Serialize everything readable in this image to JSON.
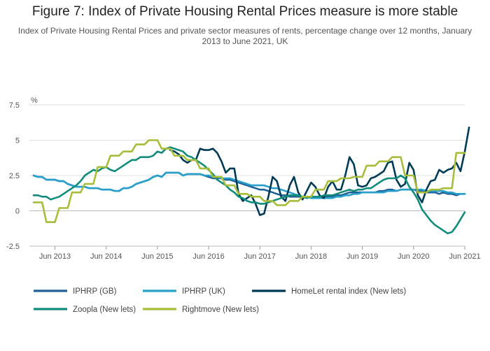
{
  "title": "Figure 7: Index of Private Housing Rental Prices measure is more stable",
  "subtitle": "Index of Private Housing Rental Prices and private sector measures of rents, percentage change over 12 months, January 2013 to June 2021, UK",
  "chart_data": {
    "type": "line",
    "ylabel": "%",
    "ylim": [
      -2.5,
      7.5
    ],
    "yticks": [
      "-2.5",
      "0",
      "2.5",
      "5",
      "7.5"
    ],
    "xticks": [
      "Jun 2013",
      "Jun 2014",
      "Jun 2015",
      "Jun 2016",
      "Jun 2017",
      "Jun 2018",
      "Jun 2019",
      "Jun 2020",
      "Jun 2021"
    ],
    "x_start": "Jan 2013",
    "x_end": "Jun 2021",
    "grid": true,
    "legend_position": "bottom",
    "series": [
      {
        "name": "IPHRP (GB)",
        "color": "#206095",
        "values": [
          2.5,
          2.4,
          2.4,
          2.2,
          2.2,
          2.2,
          2.1,
          2.1,
          1.9,
          1.8,
          1.7,
          1.7,
          1.7,
          1.6,
          1.6,
          1.6,
          1.5,
          1.5,
          1.5,
          1.4,
          1.4,
          1.6,
          1.6,
          1.7,
          1.9,
          2.0,
          2.1,
          2.2,
          2.4,
          2.5,
          2.4,
          2.7,
          2.7,
          2.7,
          2.7,
          2.5,
          2.6,
          2.6,
          2.6,
          2.6,
          2.5,
          2.4,
          2.3,
          2.3,
          2.3,
          2.2,
          2.2,
          2.1,
          2.0,
          1.9,
          1.8,
          1.7,
          1.6,
          1.5,
          1.5,
          1.4,
          1.3,
          1.2,
          1.1,
          1.1,
          1.0,
          1.0,
          1.0,
          1.0,
          1.0,
          1.0,
          1.0,
          1.0,
          1.0,
          1.0,
          1.0,
          1.1,
          1.1,
          1.2,
          1.3,
          1.3,
          1.3,
          1.3,
          1.3,
          1.3,
          1.3,
          1.4,
          1.4,
          1.5,
          1.5,
          1.4,
          1.5,
          1.5,
          1.5,
          1.5,
          1.4,
          1.4,
          1.3,
          1.3,
          1.3,
          1.2,
          1.3,
          1.2,
          1.2,
          1.1,
          1.2,
          1.2
        ]
      },
      {
        "name": "IPHRP (UK)",
        "color": "#27a0cc",
        "values": [
          2.5,
          2.4,
          2.4,
          2.2,
          2.2,
          2.2,
          2.1,
          2.1,
          1.9,
          1.8,
          1.7,
          1.7,
          1.7,
          1.6,
          1.6,
          1.6,
          1.5,
          1.5,
          1.5,
          1.4,
          1.4,
          1.6,
          1.6,
          1.7,
          1.9,
          2.0,
          2.1,
          2.2,
          2.4,
          2.5,
          2.4,
          2.7,
          2.7,
          2.7,
          2.7,
          2.5,
          2.6,
          2.6,
          2.6,
          2.6,
          2.5,
          2.5,
          2.4,
          2.4,
          2.3,
          2.3,
          2.3,
          2.2,
          2.1,
          2.0,
          1.9,
          1.8,
          1.8,
          1.8,
          1.8,
          1.7,
          1.6,
          1.6,
          1.5,
          1.4,
          1.3,
          1.2,
          1.1,
          1.0,
          1.0,
          0.9,
          0.9,
          0.9,
          0.9,
          0.9,
          0.9,
          1.0,
          1.0,
          1.1,
          1.1,
          1.2,
          1.2,
          1.3,
          1.3,
          1.3,
          1.3,
          1.3,
          1.3,
          1.4,
          1.4,
          1.4,
          1.5,
          1.5,
          1.5,
          1.5,
          1.5,
          1.5,
          1.4,
          1.4,
          1.4,
          1.4,
          1.4,
          1.3,
          1.3,
          1.2,
          1.2,
          1.2
        ]
      },
      {
        "name": "HomeLet rental index (New lets)",
        "color": "#003c57",
        "values": [
          null,
          null,
          null,
          null,
          null,
          null,
          null,
          null,
          null,
          null,
          null,
          null,
          null,
          null,
          null,
          null,
          null,
          null,
          null,
          null,
          null,
          null,
          null,
          null,
          null,
          null,
          null,
          null,
          null,
          null,
          null,
          null,
          4.3,
          4.2,
          4.0,
          3.6,
          3.4,
          3.6,
          3.6,
          4.4,
          4.3,
          4.3,
          4.4,
          4.1,
          3.5,
          2.7,
          3.0,
          3.0,
          1.2,
          0.7,
          0.9,
          1.1,
          0.5,
          -0.3,
          -0.2,
          1.0,
          2.4,
          2.1,
          1.0,
          0.7,
          1.8,
          2.4,
          1.3,
          0.8,
          1.4,
          2.0,
          1.7,
          1.1,
          0.9,
          1.7,
          2.1,
          1.5,
          1.5,
          2.5,
          3.8,
          3.3,
          1.8,
          1.7,
          1.8,
          2.3,
          2.4,
          2.6,
          2.8,
          3.4,
          3.5,
          2.2,
          1.7,
          1.9,
          3.4,
          2.9,
          1.1,
          0.6,
          1.5,
          2.1,
          2.2,
          2.9,
          2.7,
          2.9,
          3.0,
          3.4,
          2.8,
          4.2,
          5.9
        ]
      },
      {
        "name": "Zoopla (New lets)",
        "color": "#118c7b",
        "values": [
          1.1,
          1.1,
          1.0,
          1.0,
          0.8,
          0.9,
          1.0,
          1.2,
          1.4,
          1.6,
          1.8,
          2.1,
          2.5,
          2.7,
          2.9,
          2.8,
          3.0,
          3.1,
          2.9,
          2.8,
          3.0,
          3.2,
          3.4,
          3.6,
          3.6,
          3.8,
          3.8,
          3.8,
          3.9,
          4.2,
          4.1,
          4.4,
          4.5,
          4.4,
          4.3,
          4.2,
          3.9,
          3.8,
          3.6,
          3.4,
          3.2,
          2.9,
          2.6,
          2.2,
          2.0,
          1.8,
          1.5,
          1.3,
          1.0,
          0.9,
          0.7,
          0.6,
          0.6,
          0.5,
          0.5,
          0.6,
          0.7,
          0.8,
          0.9,
          1.0,
          1.1,
          1.1,
          1.1,
          1.0,
          0.9,
          1.0,
          1.0,
          1.0,
          1.1,
          1.1,
          1.1,
          1.2,
          1.3,
          1.4,
          1.5,
          1.4,
          1.5,
          1.5,
          1.6,
          1.6,
          1.8,
          2.0,
          2.2,
          2.3,
          2.3,
          2.3,
          2.5,
          2.3,
          1.7,
          1.3,
          0.8,
          0.1,
          -0.3,
          -0.7,
          -1.0,
          -1.2,
          -1.4,
          -1.6,
          -1.5,
          -1.1,
          -0.6,
          -0.1
        ]
      },
      {
        "name": "Rightmove (New lets)",
        "color": "#a8bd3a",
        "values": [
          0.6,
          0.6,
          0.6,
          -0.8,
          -0.8,
          -0.8,
          0.2,
          0.2,
          0.2,
          1.3,
          1.3,
          1.3,
          1.9,
          1.9,
          1.9,
          3.1,
          3.1,
          3.1,
          3.9,
          3.9,
          3.9,
          4.2,
          4.2,
          4.2,
          4.7,
          4.7,
          4.7,
          5.0,
          5.0,
          5.0,
          4.4,
          4.4,
          4.4,
          3.9,
          3.9,
          3.9,
          3.6,
          3.6,
          3.6,
          3.0,
          3.0,
          3.0,
          2.4,
          2.4,
          2.4,
          1.8,
          1.8,
          1.8,
          1.2,
          1.2,
          1.2,
          1.0,
          1.0,
          1.0,
          0.7,
          0.7,
          0.7,
          0.4,
          0.4,
          0.4,
          0.7,
          0.7,
          0.7,
          1.0,
          1.0,
          1.0,
          1.5,
          1.5,
          1.5,
          2.1,
          2.1,
          2.1,
          2.3,
          2.3,
          2.3,
          2.4,
          2.4,
          2.4,
          3.2,
          3.2,
          3.2,
          3.5,
          3.5,
          3.5,
          3.8,
          3.8,
          3.8,
          2.5,
          2.5,
          2.5,
          1.3,
          1.3,
          1.3,
          1.5,
          1.5,
          1.5,
          1.6,
          1.6,
          1.6,
          4.1,
          4.1,
          4.1
        ]
      }
    ]
  }
}
